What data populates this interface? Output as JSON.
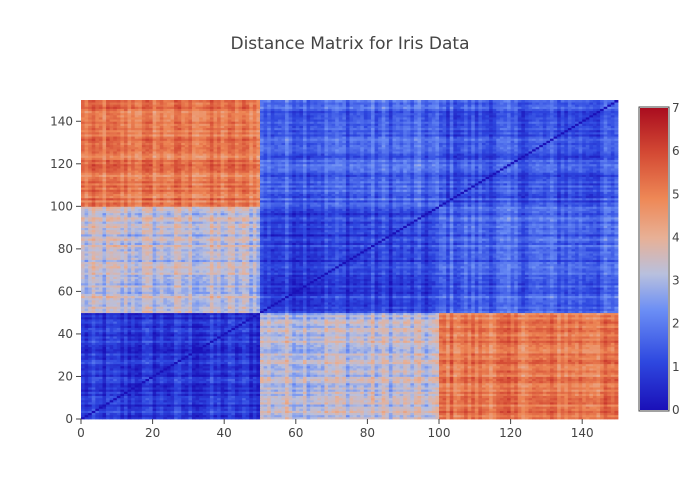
{
  "chart_data": {
    "type": "heatmap",
    "title": "Distance Matrix for Iris Data",
    "xlabel": "",
    "ylabel": "",
    "n": 150,
    "xlim": [
      0,
      150
    ],
    "ylim": [
      0,
      150
    ],
    "x_ticks": [
      0,
      20,
      40,
      60,
      80,
      100,
      120,
      140
    ],
    "y_ticks": [
      0,
      20,
      40,
      60,
      80,
      100,
      120,
      140
    ],
    "colorscale": {
      "min": 0,
      "max": 7,
      "ticks": [
        0,
        1,
        2,
        3,
        4,
        5,
        6,
        7
      ],
      "stops": [
        [
          0.0,
          "#1a10b8"
        ],
        [
          0.16,
          "#2e48e0"
        ],
        [
          0.33,
          "#6b8ef5"
        ],
        [
          0.45,
          "#b8c0de"
        ],
        [
          0.57,
          "#e8b096"
        ],
        [
          0.7,
          "#ee8856"
        ],
        [
          0.85,
          "#d44a34"
        ],
        [
          1.0,
          "#aa0d1f"
        ]
      ]
    },
    "block_bounds": [
      0,
      50,
      100,
      150
    ],
    "block_means": [
      [
        0.7,
        3.2,
        5.1
      ],
      [
        3.2,
        1.0,
        1.6
      ],
      [
        5.1,
        1.6,
        1.3
      ]
    ]
  }
}
